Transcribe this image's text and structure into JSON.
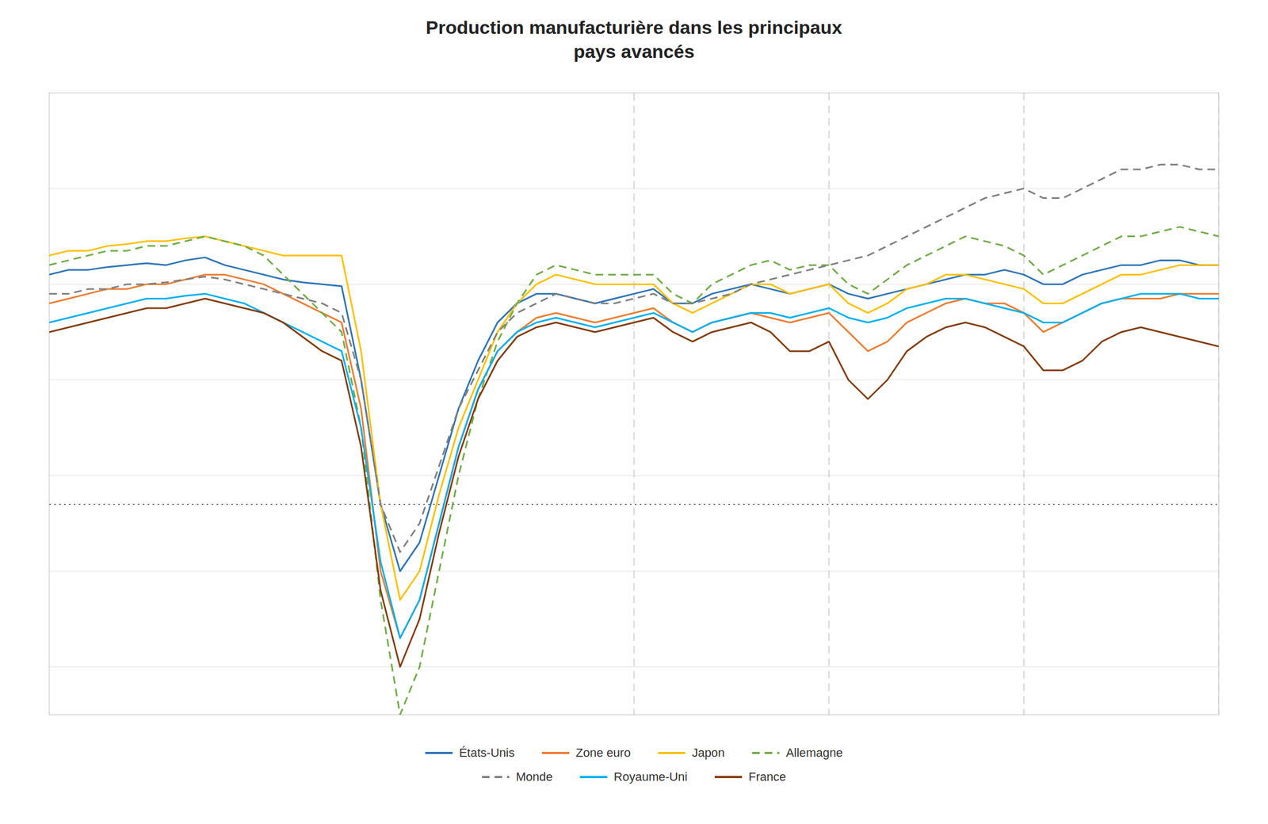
{
  "chart_data": {
    "type": "line",
    "title": "Production manufacturière dans les principaux\npays avancés",
    "x": [
      0,
      1,
      2,
      3,
      4,
      5,
      6,
      7,
      8,
      9,
      10,
      11,
      12,
      13,
      14,
      15,
      16,
      17,
      18,
      19,
      20,
      21,
      22,
      23,
      24,
      25,
      26,
      27,
      28,
      29,
      30,
      31,
      32,
      33,
      34,
      35,
      36,
      37,
      38,
      39,
      40,
      41,
      42,
      43,
      44,
      45,
      46,
      47,
      48,
      49,
      50,
      51,
      52,
      53,
      54,
      55,
      56,
      57,
      58,
      59,
      60
    ],
    "series": [
      {
        "name": "États-Unis",
        "color": "#2E75B6",
        "line_style": "solid",
        "values": [
          96,
          96.5,
          96.5,
          96.8,
          97,
          97.2,
          97,
          97.5,
          97.8,
          97,
          96.5,
          96,
          95.5,
          95.2,
          95,
          94.8,
          85,
          72,
          65,
          68,
          75,
          82,
          87,
          91,
          93,
          94,
          94,
          93.5,
          93,
          93.5,
          94,
          94.5,
          93,
          93,
          94,
          94.5,
          95,
          94.5,
          94,
          94.5,
          95,
          94,
          93.5,
          94,
          94.5,
          95,
          95.5,
          96,
          96,
          96.5,
          96,
          95,
          95,
          96,
          96.5,
          97,
          97,
          97.5,
          97.5,
          97,
          97
        ]
      },
      {
        "name": "Zone euro",
        "color": "#ED7D31",
        "line_style": "solid",
        "values": [
          93,
          93.5,
          94,
          94.5,
          94.5,
          95,
          95,
          95.5,
          96,
          96,
          95.5,
          95,
          94,
          93,
          92,
          91,
          82,
          65,
          58,
          62,
          70,
          78,
          84,
          88,
          90,
          91.5,
          92,
          91.5,
          91,
          91.5,
          92,
          92.5,
          91,
          90,
          91,
          91.5,
          92,
          91.5,
          91,
          91.5,
          92,
          90,
          88,
          89,
          91,
          92,
          93,
          93.5,
          93,
          93,
          92,
          90,
          91,
          92,
          93,
          93.5,
          93.5,
          93.5,
          94,
          94,
          94
        ]
      },
      {
        "name": "Japon",
        "color": "#FFC000",
        "line_style": "solid",
        "values": [
          98,
          98.5,
          98.5,
          99,
          99.2,
          99.5,
          99.5,
          99.8,
          100,
          99.5,
          99,
          98.5,
          98,
          98,
          98,
          98,
          88,
          72,
          62,
          65,
          73,
          80,
          85,
          90,
          93,
          95,
          96,
          95.5,
          95,
          95,
          95,
          95,
          93,
          92,
          93,
          94,
          95,
          95,
          94,
          94.5,
          95,
          93,
          92,
          93,
          94.5,
          95,
          96,
          96,
          95.5,
          95,
          94.5,
          93,
          93,
          94,
          95,
          96,
          96,
          96.5,
          97,
          97,
          97
        ]
      },
      {
        "name": "Allemagne",
        "color": "#70AD47",
        "line_style": "dashed",
        "values": [
          97,
          97.5,
          98,
          98.5,
          98.5,
          99,
          99,
          99.5,
          100,
          99.5,
          99,
          98,
          96,
          94,
          92,
          90,
          80,
          62,
          50,
          55,
          65,
          75,
          83,
          89,
          93,
          96,
          97,
          96.5,
          96,
          96,
          96,
          96,
          94,
          93,
          95,
          96,
          97,
          97.5,
          96.5,
          97,
          97,
          95,
          94,
          95.5,
          97,
          98,
          99,
          100,
          99.5,
          99,
          98,
          96,
          97,
          98,
          99,
          100,
          100,
          100.5,
          101,
          100.5,
          100
        ]
      },
      {
        "name": "Monde",
        "color": "#808080",
        "line_style": "dashed",
        "values": [
          94,
          94,
          94.5,
          94.5,
          95,
          95,
          95.2,
          95.5,
          95.8,
          95.5,
          95,
          94.5,
          94,
          93.5,
          93,
          92,
          85,
          72,
          67,
          70,
          76,
          82,
          86,
          90,
          92,
          93,
          94,
          93.5,
          93,
          93,
          93.5,
          94,
          93,
          93,
          93.5,
          94,
          95,
          95.5,
          96,
          96.5,
          97,
          97.5,
          98,
          99,
          100,
          101,
          102,
          103,
          104,
          104.5,
          105,
          104,
          104,
          105,
          106,
          107,
          107,
          107.5,
          107.5,
          107,
          107
        ]
      },
      {
        "name": "Royaume-Uni",
        "color": "#00B0F0",
        "line_style": "solid",
        "values": [
          91,
          91.5,
          92,
          92.5,
          93,
          93.5,
          93.5,
          93.8,
          94,
          93.5,
          93,
          92,
          91,
          90,
          89,
          88,
          80,
          66,
          58,
          62,
          70,
          78,
          84,
          88,
          90,
          91,
          91.5,
          91,
          90.5,
          91,
          91.5,
          92,
          91,
          90,
          91,
          91.5,
          92,
          92,
          91.5,
          92,
          92.5,
          91.5,
          91,
          91.5,
          92.5,
          93,
          93.5,
          93.5,
          93,
          92.5,
          92,
          91,
          91,
          92,
          93,
          93.5,
          94,
          94,
          94,
          93.5,
          93.5
        ]
      },
      {
        "name": "France",
        "color": "#843C0C",
        "line_style": "solid",
        "values": [
          90,
          90.5,
          91,
          91.5,
          92,
          92.5,
          92.5,
          93,
          93.5,
          93,
          92.5,
          92,
          91,
          89.5,
          88,
          87,
          78,
          63,
          55,
          60,
          69,
          77,
          83,
          87,
          89.5,
          90.5,
          91,
          90.5,
          90,
          90.5,
          91,
          91.5,
          90,
          89,
          90,
          90.5,
          91,
          90,
          88,
          88,
          89,
          85,
          83,
          85,
          88,
          89.5,
          90.5,
          91,
          90.5,
          89.5,
          88.5,
          86,
          86,
          87,
          89,
          90,
          90.5,
          90,
          89.5,
          89,
          88.5
        ]
      }
    ],
    "xlim": [
      0,
      60
    ],
    "ylim": [
      50,
      115
    ],
    "yticks": [
      55,
      65,
      75,
      85,
      95,
      105
    ],
    "hlines": [
      {
        "value": 72,
        "color": "#404040",
        "line_style": "dotted"
      }
    ],
    "vlines": [
      {
        "value": 30,
        "color": "#909090",
        "line_style": "dashed"
      },
      {
        "value": 40,
        "color": "#909090",
        "line_style": "dashed"
      },
      {
        "value": 50,
        "color": "#909090",
        "line_style": "dashed"
      },
      {
        "value": 60,
        "color": "#909090",
        "line_style": "dashed"
      }
    ],
    "grid": true,
    "tick_labels": false,
    "legend": "bottom"
  }
}
